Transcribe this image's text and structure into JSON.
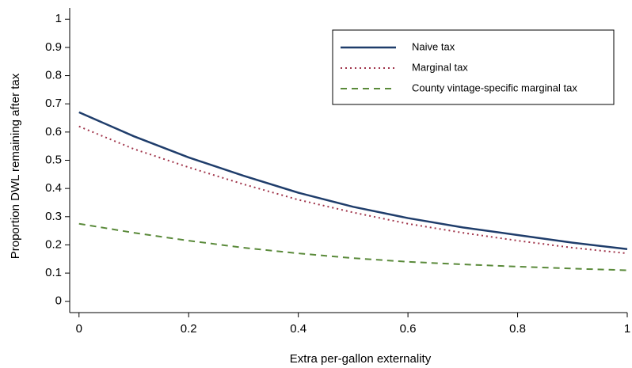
{
  "chart_data": {
    "type": "line",
    "x_label": "Extra per-gallon externality",
    "y_label": "Proportion DWL remaining after tax",
    "x": [
      0,
      0.1,
      0.2,
      0.3,
      0.4,
      0.5,
      0.6,
      0.7,
      0.8,
      0.9,
      1
    ],
    "series": [
      {
        "name": "Naive tax",
        "color": "#1f3d6b",
        "style": "solid",
        "values": [
          0.67,
          0.585,
          0.51,
          0.445,
          0.385,
          0.335,
          0.295,
          0.262,
          0.235,
          0.208,
          0.185
        ]
      },
      {
        "name": "Marginal tax",
        "color": "#a0344a",
        "style": "dotted",
        "values": [
          0.62,
          0.54,
          0.475,
          0.415,
          0.36,
          0.315,
          0.275,
          0.243,
          0.215,
          0.19,
          0.17
        ]
      },
      {
        "name": "County vintage-specific marginal tax",
        "color": "#5a8a3a",
        "style": "dashed",
        "values": [
          0.275,
          0.243,
          0.215,
          0.19,
          0.17,
          0.153,
          0.14,
          0.131,
          0.123,
          0.116,
          0.11
        ]
      }
    ],
    "xlim": [
      -0.017,
      1
    ],
    "xticks": [
      0,
      0.2,
      0.4,
      0.6,
      0.8,
      1
    ],
    "ylim": [
      -0.04,
      1.04
    ],
    "yticks": [
      0,
      0.1,
      0.2,
      0.3,
      0.4,
      0.5,
      0.6,
      0.7,
      0.8,
      0.9,
      1
    ],
    "grid": false,
    "legend": "upper right"
  }
}
